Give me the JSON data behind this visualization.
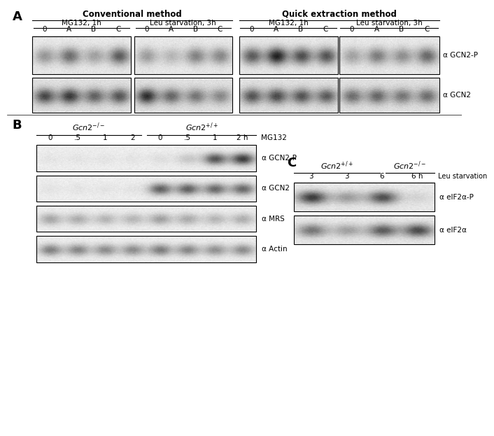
{
  "figure_width": 6.5,
  "figure_height": 6.03,
  "bg_color": "#ffffff",
  "panel_A": {
    "label": "A",
    "top_label_conventional": "Conventional method",
    "top_label_quick": "Quick extraction method",
    "sub_labels": [
      "MG132, 1h",
      "Leu starvation, 3h",
      "MG132, 1h",
      "Leu starvation, 3h"
    ],
    "lane_labels": [
      "0",
      "A",
      "B",
      "C"
    ],
    "antibody_labels": [
      "α GCN2-P",
      "α GCN2"
    ]
  },
  "panel_B": {
    "label": "B",
    "gcn2_minus_label": "Gcn2−/−",
    "gcn2_plus_label": "Gcn2+/+",
    "lane_labels_b": [
      "0",
      ".5",
      "1",
      "2",
      "0",
      ".5",
      "1",
      "2 h"
    ],
    "mg132_label": "MG132",
    "antibody_labels_b": [
      "α GCN2-P",
      "α GCN2",
      "α MRS",
      "α Actin"
    ]
  },
  "panel_C": {
    "label": "C",
    "gcn2_plus_label": "Gcn2+/+",
    "gcn2_minus_label": "Gcn2−/−",
    "lane_labels_c": [
      "3",
      "3",
      "6",
      "6 h"
    ],
    "starvation_label": "Leu starvation",
    "antibody_labels_c": [
      "α eIF2α-P",
      "α eIF2α"
    ]
  }
}
